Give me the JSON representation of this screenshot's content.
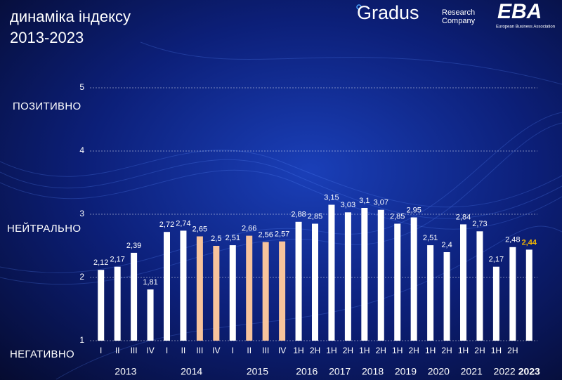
{
  "chart_data": {
    "type": "bar",
    "title": [
      "динаміка індексу",
      "2013-2023"
    ],
    "logos": {
      "brand": "Gradus",
      "brand_sub": [
        "Research",
        "Company"
      ],
      "partner": "EBA",
      "partner_sub": "European Business Association"
    },
    "annotations": [
      "ПОЗИТИВНО",
      "НЕЙТРАЛЬНО",
      "НЕГАТИВНО"
    ],
    "categories": [
      "I",
      "II",
      "III",
      "IV",
      "I",
      "II",
      "III",
      "IV",
      "I",
      "II",
      "III",
      "IV",
      "1H",
      "2H",
      "1H",
      "2H",
      "1H",
      "2H",
      "1H",
      "2H",
      "1H",
      "2H",
      "1H",
      "2H",
      "1H",
      "2H",
      null
    ],
    "years": [
      "2013",
      "2013",
      "2013",
      "2013",
      "2014",
      "2014",
      "2014",
      "2014",
      "2015",
      "2015",
      "2015",
      "2015",
      "2016",
      "2016",
      "2017",
      "2017",
      "2018",
      "2018",
      "2019",
      "2019",
      "2020",
      "2020",
      "2021",
      "2021",
      "2022",
      "2022",
      "2023"
    ],
    "values": [
      2.12,
      2.17,
      2.39,
      1.81,
      2.72,
      2.74,
      2.65,
      2.5,
      2.51,
      2.66,
      2.56,
      2.57,
      2.88,
      2.85,
      3.15,
      3.03,
      3.1,
      3.07,
      2.85,
      2.95,
      2.51,
      2.4,
      2.84,
      2.73,
      2.17,
      2.48,
      2.44
    ],
    "value_labels": [
      "2,12",
      "2,17",
      "2,39",
      "1,81",
      "2,72",
      "2,74",
      "2,65",
      "2,5",
      "2,51",
      "2,66",
      "2,56",
      "2,57",
      "2,88",
      "2,85",
      "3,15",
      "3,03",
      "3,1",
      "3,07",
      "2,85",
      "2,95",
      "2,51",
      "2,4",
      "2,84",
      "2,73",
      "2,17",
      "2,48",
      "2,44"
    ],
    "colors": [
      "#ffffff",
      "#ffffff",
      "#ffffff",
      "#ffffff",
      "#ffffff",
      "#ffffff",
      "#f7c39c",
      "#f7c39c",
      "#ffffff",
      "#f7c39c",
      "#f7c39c",
      "#f7c39c",
      "#ffffff",
      "#ffffff",
      "#ffffff",
      "#ffffff",
      "#ffffff",
      "#ffffff",
      "#ffffff",
      "#ffffff",
      "#ffffff",
      "#ffffff",
      "#ffffff",
      "#ffffff",
      "#ffffff",
      "#ffffff",
      "#ffffff"
    ],
    "label_colors": [
      "#ffffff",
      "#ffffff",
      "#ffffff",
      "#ffffff",
      "#ffffff",
      "#ffffff",
      "#ffffff",
      "#ffffff",
      "#ffffff",
      "#ffffff",
      "#ffffff",
      "#ffffff",
      "#ffffff",
      "#ffffff",
      "#ffffff",
      "#ffffff",
      "#ffffff",
      "#ffffff",
      "#ffffff",
      "#ffffff",
      "#ffffff",
      "#ffffff",
      "#ffffff",
      "#ffffff",
      "#ffffff",
      "#ffffff",
      "#f5b800"
    ],
    "ylim": [
      1,
      5
    ],
    "yticks": [
      1,
      2,
      3,
      4,
      5
    ],
    "grid": true
  }
}
